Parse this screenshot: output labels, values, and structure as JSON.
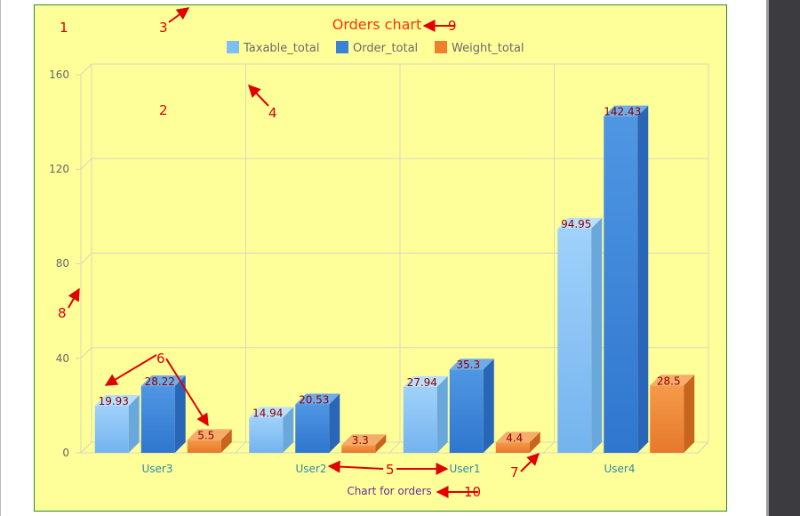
{
  "chart_data": {
    "type": "bar",
    "title": "Orders chart",
    "xlabel": "Chart for orders",
    "ylabel": "",
    "categories": [
      "User3",
      "User2",
      "User1",
      "User4"
    ],
    "series": [
      {
        "name": "Taxable_total",
        "values": [
          19.93,
          14.94,
          27.94,
          94.95
        ]
      },
      {
        "name": "Order_total",
        "values": [
          28.22,
          20.53,
          35.3,
          142.43
        ]
      },
      {
        "name": "Weight_total",
        "values": [
          5.5,
          3.3,
          4.4,
          28.5
        ]
      }
    ],
    "yticks": [
      0,
      40,
      80,
      120,
      160
    ],
    "ylim": [
      0,
      160
    ],
    "grid": true,
    "legend_position": "top",
    "three_d": true
  },
  "annotations": {
    "numbers": [
      "1",
      "2",
      "3",
      "4",
      "5",
      "6",
      "7",
      "8",
      "9",
      "10"
    ],
    "color": "#e00000"
  },
  "colors": {
    "series": [
      "#7fbef5",
      "#3a82d6",
      "#ee7f2d"
    ],
    "panel_bg": "#ffff99",
    "grid": "#d7d7c0",
    "title": "#ff3300",
    "category_label": "#2a8ca8",
    "xlabel": "#6a2d9a",
    "data_label": "#8b0000",
    "axis_text": "#666666"
  }
}
